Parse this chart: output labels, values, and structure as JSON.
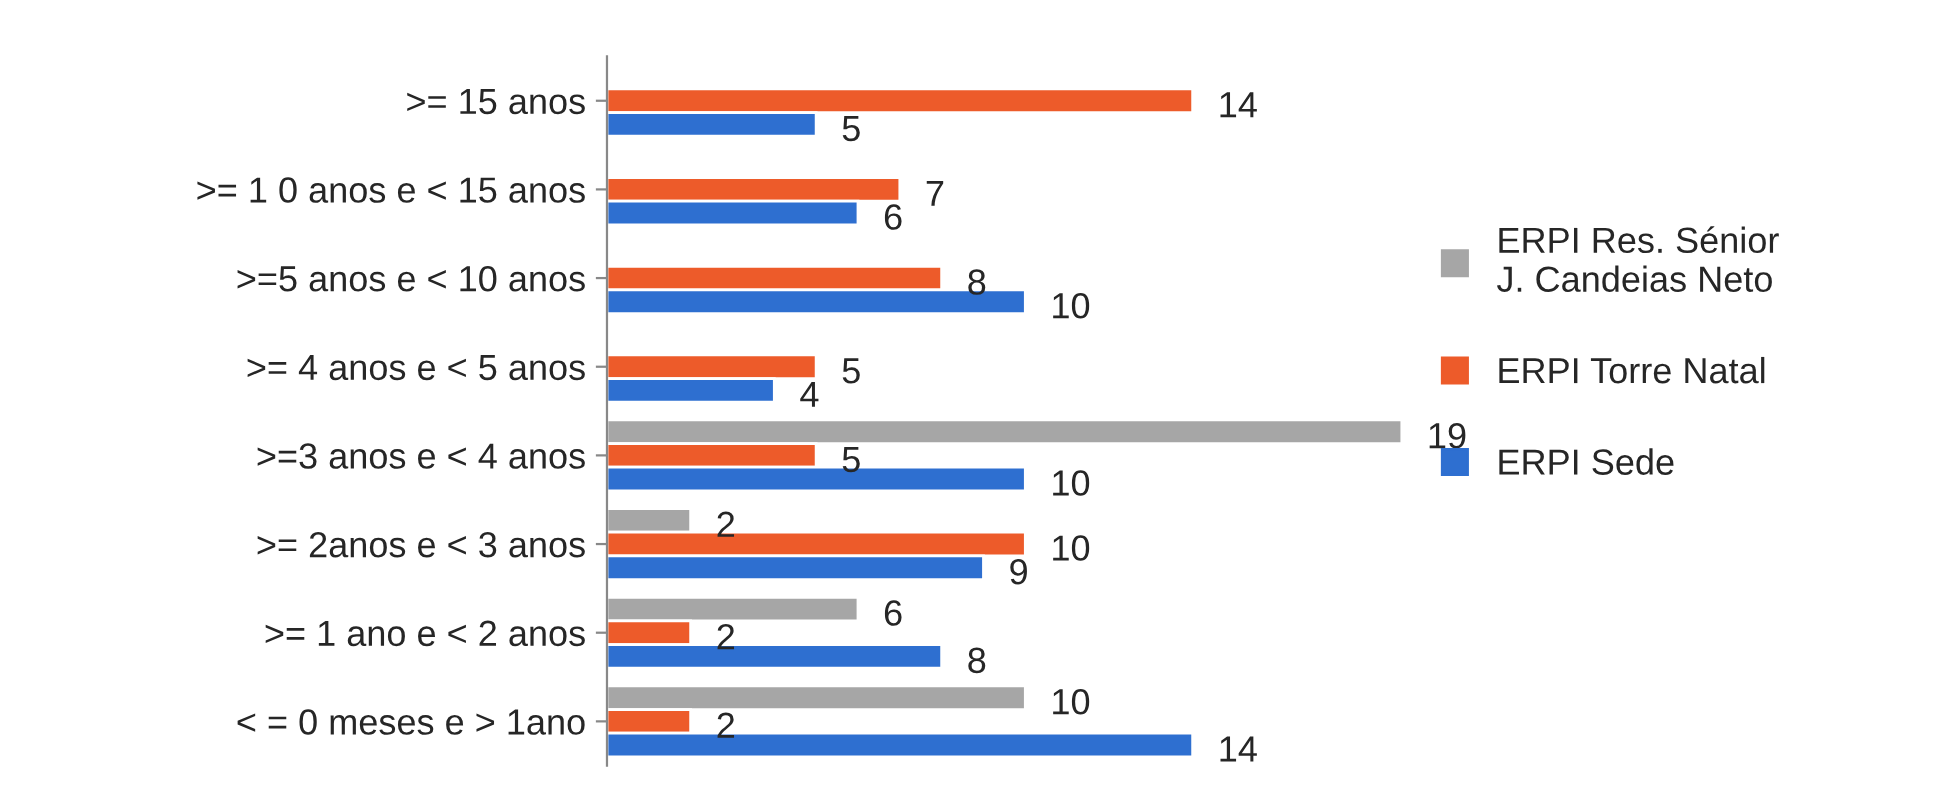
{
  "chart_data": {
    "type": "bar",
    "orientation": "horizontal",
    "data_labels": true,
    "legend": "right",
    "grid": false,
    "categories": [
      ">= 15 anos",
      ">= 1 0 anos e < 15 anos",
      ">=5 anos e < 10 anos",
      ">= 4 anos e < 5 anos",
      ">=3 anos e < 4 anos",
      ">= 2anos e < 3 anos",
      ">= 1 ano e < 2 anos",
      "< = 0 meses e > 1ano"
    ],
    "series": [
      {
        "name": "ERPI Res. Sénior J. Candeias Neto",
        "color": "#a6a6a6",
        "values": [
          null,
          null,
          null,
          null,
          19,
          2,
          6,
          10
        ]
      },
      {
        "name": "ERPI Torre Natal",
        "color": "#ed5b2a",
        "values": [
          14,
          7,
          8,
          5,
          5,
          10,
          2,
          2
        ]
      },
      {
        "name": "ERPI Sede",
        "color": "#2e6fd0",
        "values": [
          5,
          6,
          10,
          4,
          10,
          9,
          8,
          14
        ]
      }
    ]
  }
}
